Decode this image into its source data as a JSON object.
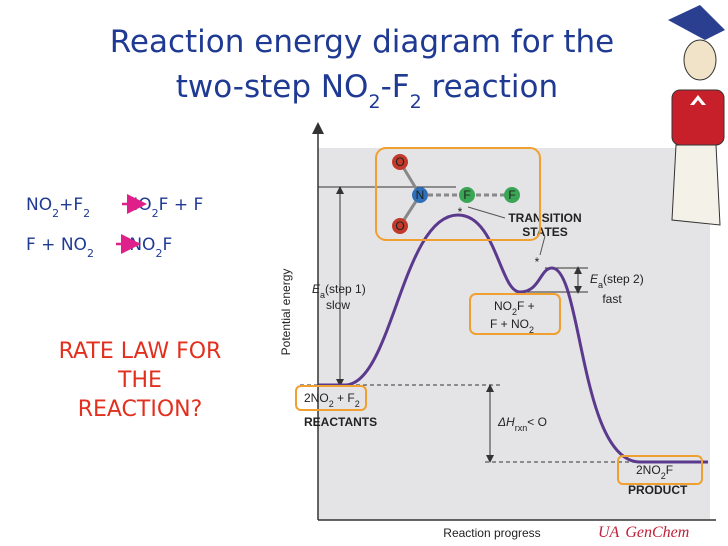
{
  "title": {
    "line1": "Reaction energy diagram for the",
    "line2": [
      "two-step NO",
      "2",
      "-F",
      "2",
      " reaction"
    ]
  },
  "equations": [
    [
      "NO",
      "2",
      "+F",
      "2",
      " NO",
      "2",
      "F + F"
    ],
    [
      "F + NO",
      "2",
      " NO",
      "2",
      "F"
    ]
  ],
  "question": [
    "RATE LAW FOR",
    "THE",
    "REACTION?"
  ],
  "diagram": {
    "y_axis_label": "Potential energy",
    "x_axis_label": "Reaction progress",
    "molecule_atoms": [
      "O",
      "N",
      "F",
      "F",
      "O"
    ],
    "transition_states": [
      "TRANSITION",
      "STATES"
    ],
    "ts_markers": [
      "*",
      "*"
    ],
    "ea_step1": [
      "E",
      "a",
      "(step 1)",
      "slow"
    ],
    "ea_step2": [
      "E",
      "a",
      "(step 2)",
      "fast"
    ],
    "intermediate": [
      [
        "NO",
        "2",
        "F +"
      ],
      [
        "F + NO",
        "2"
      ]
    ],
    "reactants": [
      "2NO",
      "2",
      " + F",
      "2",
      "REACTANTS"
    ],
    "enthalpy": [
      "ΔH",
      "rxn",
      "< O"
    ],
    "products": [
      "2NO",
      "2",
      "F",
      "PRODUCT"
    ]
  },
  "footer": [
    "UA",
    "GenChem"
  ]
}
